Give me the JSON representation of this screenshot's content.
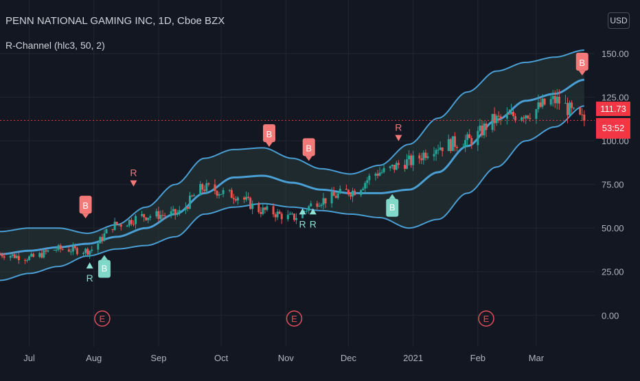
{
  "header": {
    "symbol_line": "PENN NATIONAL GAMING INC, 1D, Cboe BZX",
    "indicator_line": "R-Channel (hlc3, 50, 2)"
  },
  "currency_button": "USD",
  "last_price": {
    "price": "111.73",
    "countdown": "53:52"
  },
  "colors": {
    "background": "#131722",
    "grid": "#22262f",
    "up": "#26a69a",
    "down": "#ef5350",
    "band": "#4a9fd4",
    "mid_bull": "#4caf50",
    "mid_bear": "#f26b6b",
    "marker_b_bear": "#f47a7a",
    "marker_b_bull": "#7fd8c8",
    "marker_r": "#8ee0d4",
    "earnings": "#e0505a",
    "axis_text": "#b2b5be"
  },
  "icons": [
    "earnings-marker-icon",
    "buy-marker-icon",
    "reversal-marker-icon"
  ],
  "chart_data": {
    "type": "line",
    "title": "PENN NATIONAL GAMING INC, 1D, Cboe BZX",
    "xlabel": "",
    "ylabel": "",
    "x_ticks": [
      "Jul",
      "Aug",
      "Sep",
      "Oct",
      "Nov",
      "Dec",
      "2021",
      "Feb",
      "Mar"
    ],
    "y_ticks": [
      "0.00",
      "25.00",
      "50.00",
      "75.00",
      "100.00",
      "125.00",
      "150.00"
    ],
    "ylim": [
      -18,
      165
    ],
    "xlim": [
      "2020-06-17",
      "2021-03-29"
    ],
    "grid": true,
    "last_price": 111.73,
    "series": [
      {
        "name": "R-Channel middle",
        "x": [
          "2020-06-17",
          "2020-07-01",
          "2020-07-15",
          "2020-07-29",
          "2020-08-12",
          "2020-08-26",
          "2020-09-09",
          "2020-09-23",
          "2020-10-07",
          "2020-10-21",
          "2020-11-04",
          "2020-11-18",
          "2020-12-02",
          "2020-12-16",
          "2020-12-30",
          "2021-01-13",
          "2021-01-27",
          "2021-02-10",
          "2021-02-24",
          "2021-03-10",
          "2021-03-24"
        ],
        "values": [
          35,
          37,
          39,
          41,
          45,
          50,
          58,
          70,
          79,
          80,
          76,
          72,
          70,
          70,
          72,
          82,
          97,
          112,
          123,
          127,
          135
        ]
      },
      {
        "name": "R-Channel upper",
        "x": [
          "2020-06-17",
          "2020-07-01",
          "2020-07-15",
          "2020-07-29",
          "2020-08-12",
          "2020-08-26",
          "2020-09-09",
          "2020-09-23",
          "2020-10-07",
          "2020-10-21",
          "2020-11-04",
          "2020-11-18",
          "2020-12-02",
          "2020-12-16",
          "2020-12-30",
          "2021-01-13",
          "2021-01-27",
          "2021-02-10",
          "2021-02-24",
          "2021-03-10",
          "2021-03-24"
        ],
        "values": [
          48,
          50,
          50,
          47,
          52,
          62,
          75,
          90,
          95,
          96,
          90,
          84,
          81,
          86,
          98,
          113,
          128,
          140,
          145,
          148,
          152
        ]
      },
      {
        "name": "R-Channel lower",
        "x": [
          "2020-06-17",
          "2020-07-01",
          "2020-07-15",
          "2020-07-29",
          "2020-08-12",
          "2020-08-26",
          "2020-09-09",
          "2020-09-23",
          "2020-10-07",
          "2020-10-21",
          "2020-11-04",
          "2020-11-18",
          "2020-12-02",
          "2020-12-16",
          "2020-12-30",
          "2021-01-13",
          "2021-01-27",
          "2021-02-10",
          "2021-02-24",
          "2021-03-10",
          "2021-03-24"
        ],
        "values": [
          20,
          24,
          28,
          34,
          38,
          40,
          45,
          58,
          62,
          64,
          62,
          60,
          58,
          56,
          50,
          55,
          70,
          85,
          100,
          108,
          120
        ]
      },
      {
        "name": "Close",
        "x": [
          "2020-06-17",
          "2020-07-01",
          "2020-07-15",
          "2020-07-29",
          "2020-08-12",
          "2020-08-26",
          "2020-09-09",
          "2020-09-23",
          "2020-10-07",
          "2020-10-21",
          "2020-11-04",
          "2020-11-18",
          "2020-12-02",
          "2020-12-16",
          "2020-12-30",
          "2021-01-13",
          "2021-01-27",
          "2021-02-10",
          "2021-02-24",
          "2021-03-10",
          "2021-03-24"
        ],
        "values": [
          35,
          33,
          38,
          37,
          52,
          57,
          58,
          73,
          69,
          60,
          56,
          66,
          71,
          82,
          88,
          97,
          100,
          112,
          116,
          123,
          111.73
        ]
      }
    ],
    "signals": [
      {
        "label": "B",
        "date": "2020-07-28",
        "price": 63,
        "position": "above"
      },
      {
        "label": "R",
        "date": "2020-08-20",
        "price": 75,
        "position": "above"
      },
      {
        "label": "R",
        "date": "2020-07-30",
        "price": 28,
        "position": "below"
      },
      {
        "label": "B",
        "date": "2020-08-06",
        "price": 27,
        "position": "below"
      },
      {
        "label": "B",
        "date": "2020-10-24",
        "price": 104,
        "position": "above"
      },
      {
        "label": "B",
        "date": "2020-11-12",
        "price": 96,
        "position": "above"
      },
      {
        "label": "R",
        "date": "2020-11-09",
        "price": 59,
        "position": "below"
      },
      {
        "label": "R",
        "date": "2020-11-14",
        "price": 59,
        "position": "below"
      },
      {
        "label": "B",
        "date": "2020-12-22",
        "price": 62,
        "position": "below"
      },
      {
        "label": "R",
        "date": "2020-12-25",
        "price": 101,
        "position": "above"
      },
      {
        "label": "B",
        "date": "2021-03-23",
        "price": 145,
        "position": "above"
      }
    ],
    "earnings": [
      {
        "label": "E",
        "date": "2020-08-05"
      },
      {
        "label": "E",
        "date": "2020-11-05"
      },
      {
        "label": "E",
        "date": "2021-02-05"
      }
    ]
  }
}
